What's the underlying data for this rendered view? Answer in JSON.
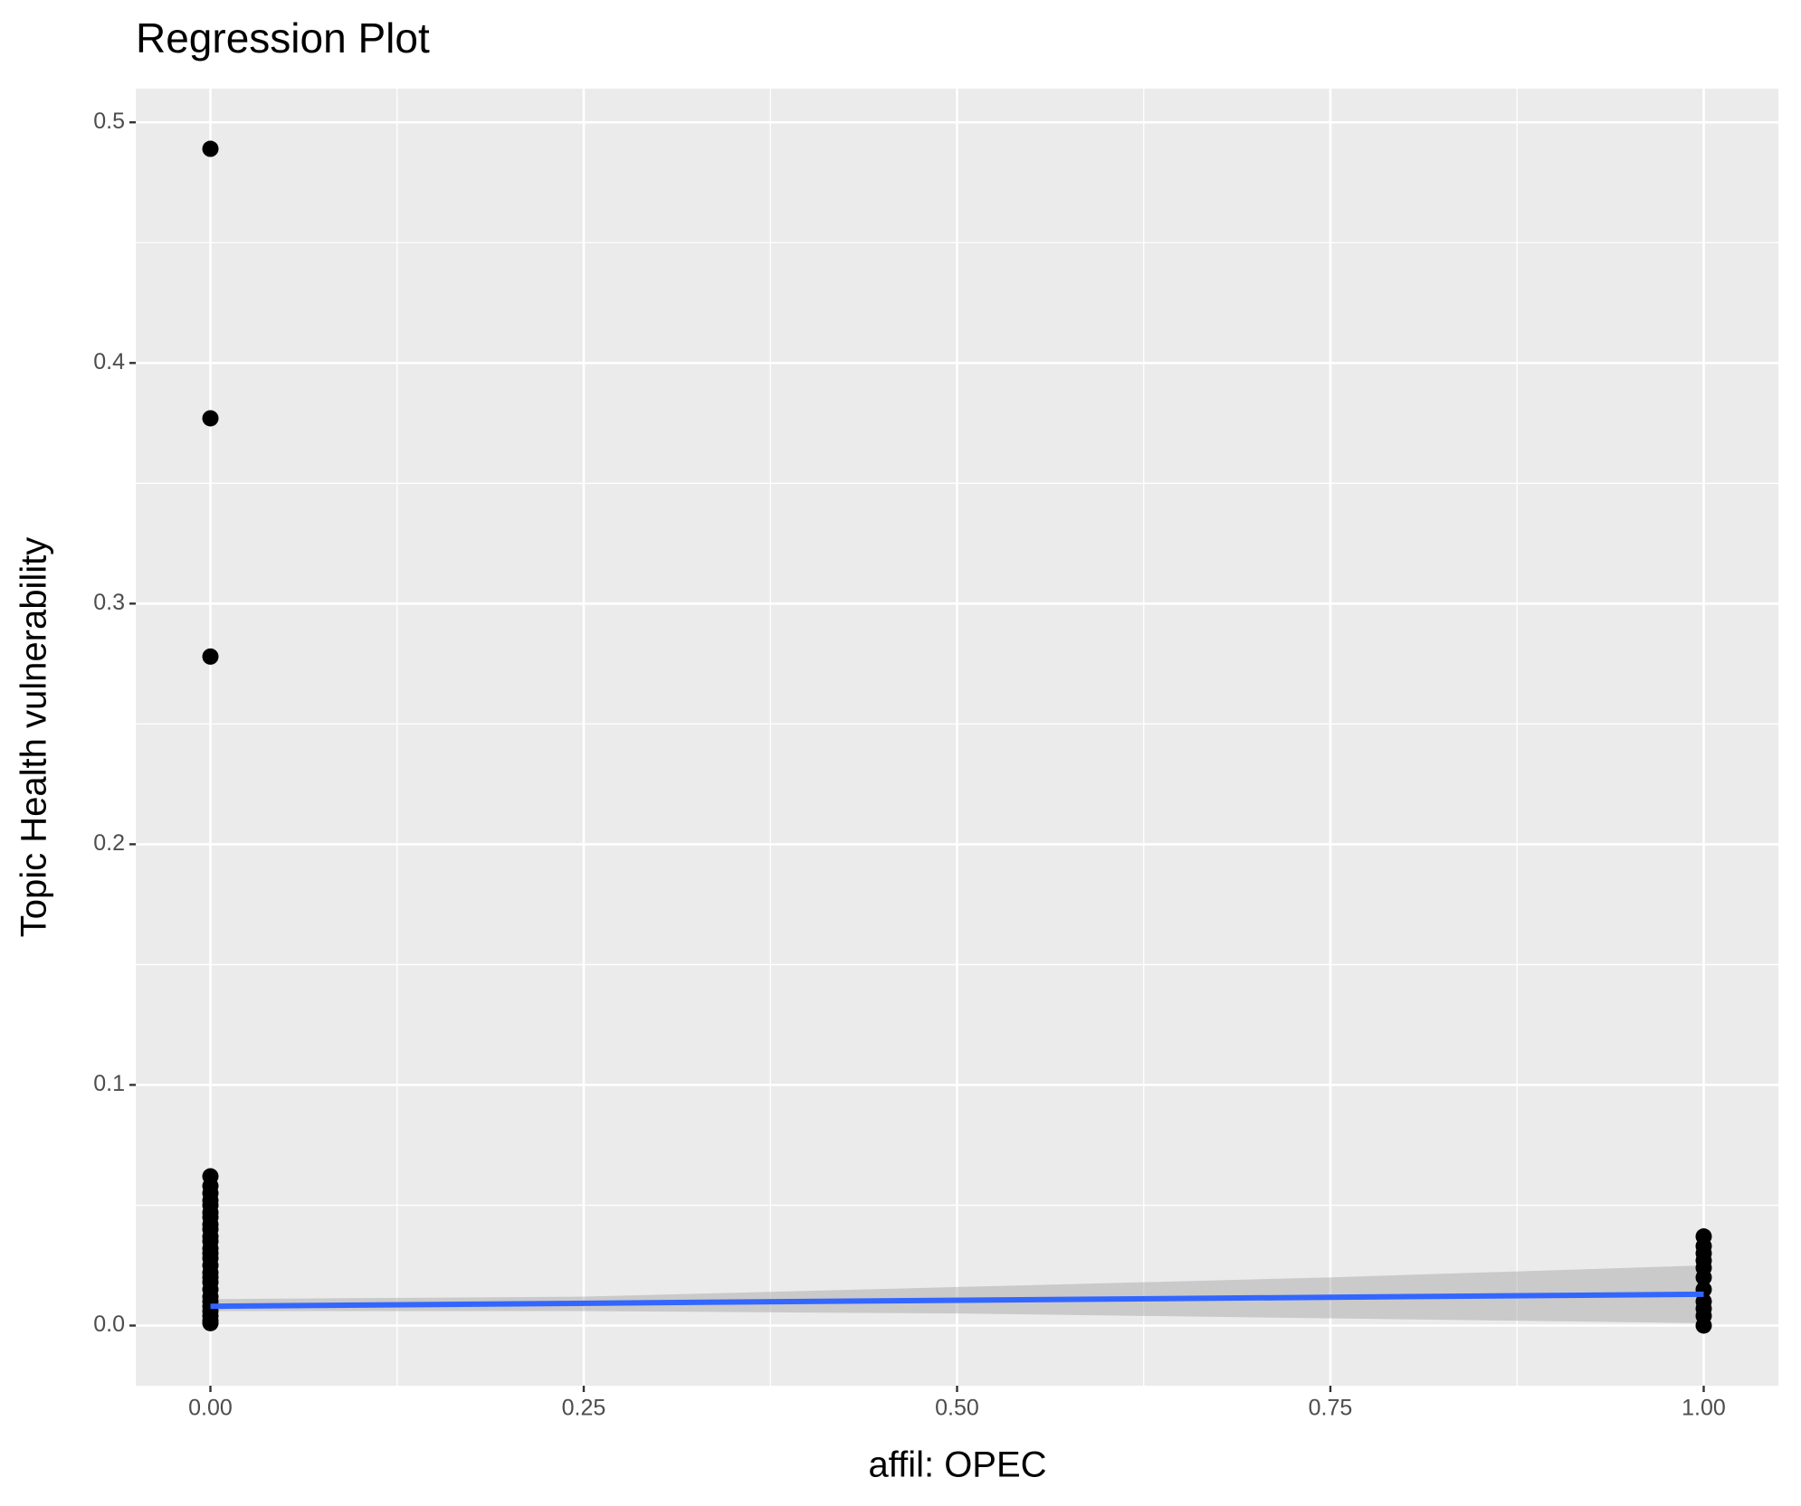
{
  "chart_data": {
    "type": "scatter",
    "title": "Regression Plot",
    "x_label": "affil: OPEC",
    "y_label": "Topic Health vulnerability",
    "xlim": [
      -0.05,
      1.05
    ],
    "ylim": [
      -0.025,
      0.514
    ],
    "xticks": [
      {
        "value": 0,
        "label": "0.00"
      },
      {
        "value": 0.25,
        "label": "0.25"
      },
      {
        "value": 0.5,
        "label": "0.50"
      },
      {
        "value": 0.75,
        "label": "0.75"
      },
      {
        "value": 1,
        "label": "1.00"
      }
    ],
    "yticks": [
      {
        "value": 0,
        "label": "0.0"
      },
      0.1,
      0.2,
      0.3,
      0.4,
      0.5
    ],
    "x_minor_grid": [
      0.125,
      0.375,
      0.625,
      0.875
    ],
    "y_minor_grid": [
      0.05,
      0.15,
      0.25,
      0.35,
      0.45
    ],
    "grid": true,
    "points": {
      "color": "#000000",
      "x": [
        0,
        0,
        0,
        0,
        0,
        0,
        0,
        0,
        0,
        0,
        0,
        0,
        0,
        0,
        0,
        0,
        0,
        0,
        0,
        0,
        0,
        0,
        0,
        0,
        0,
        0,
        0,
        0,
        0,
        1,
        1,
        1,
        1,
        1,
        1,
        1,
        1,
        1,
        1,
        1
      ],
      "y": [
        0.489,
        0.377,
        0.278,
        0.062,
        0.058,
        0.055,
        0.052,
        0.05,
        0.047,
        0.045,
        0.042,
        0.04,
        0.037,
        0.035,
        0.032,
        0.03,
        0.028,
        0.025,
        0.022,
        0.02,
        0.018,
        0.015,
        0.012,
        0.01,
        0.008,
        0.006,
        0.004,
        0.002,
        0.001,
        0.037,
        0.033,
        0.03,
        0.027,
        0.024,
        0.02,
        0.015,
        0.01,
        0.007,
        0.004,
        0
      ]
    },
    "fit": {
      "color": "#3366ff",
      "x": [
        0,
        1
      ],
      "y": [
        0.008,
        0.013
      ]
    },
    "band": {
      "color": "#999999",
      "x": [
        0,
        0.25,
        0.5,
        0.75,
        1
      ],
      "lower": [
        0.006,
        0.006,
        0.005,
        0.003,
        0.001
      ],
      "upper": [
        0.011,
        0.012,
        0.016,
        0.02,
        0.025
      ]
    }
  }
}
